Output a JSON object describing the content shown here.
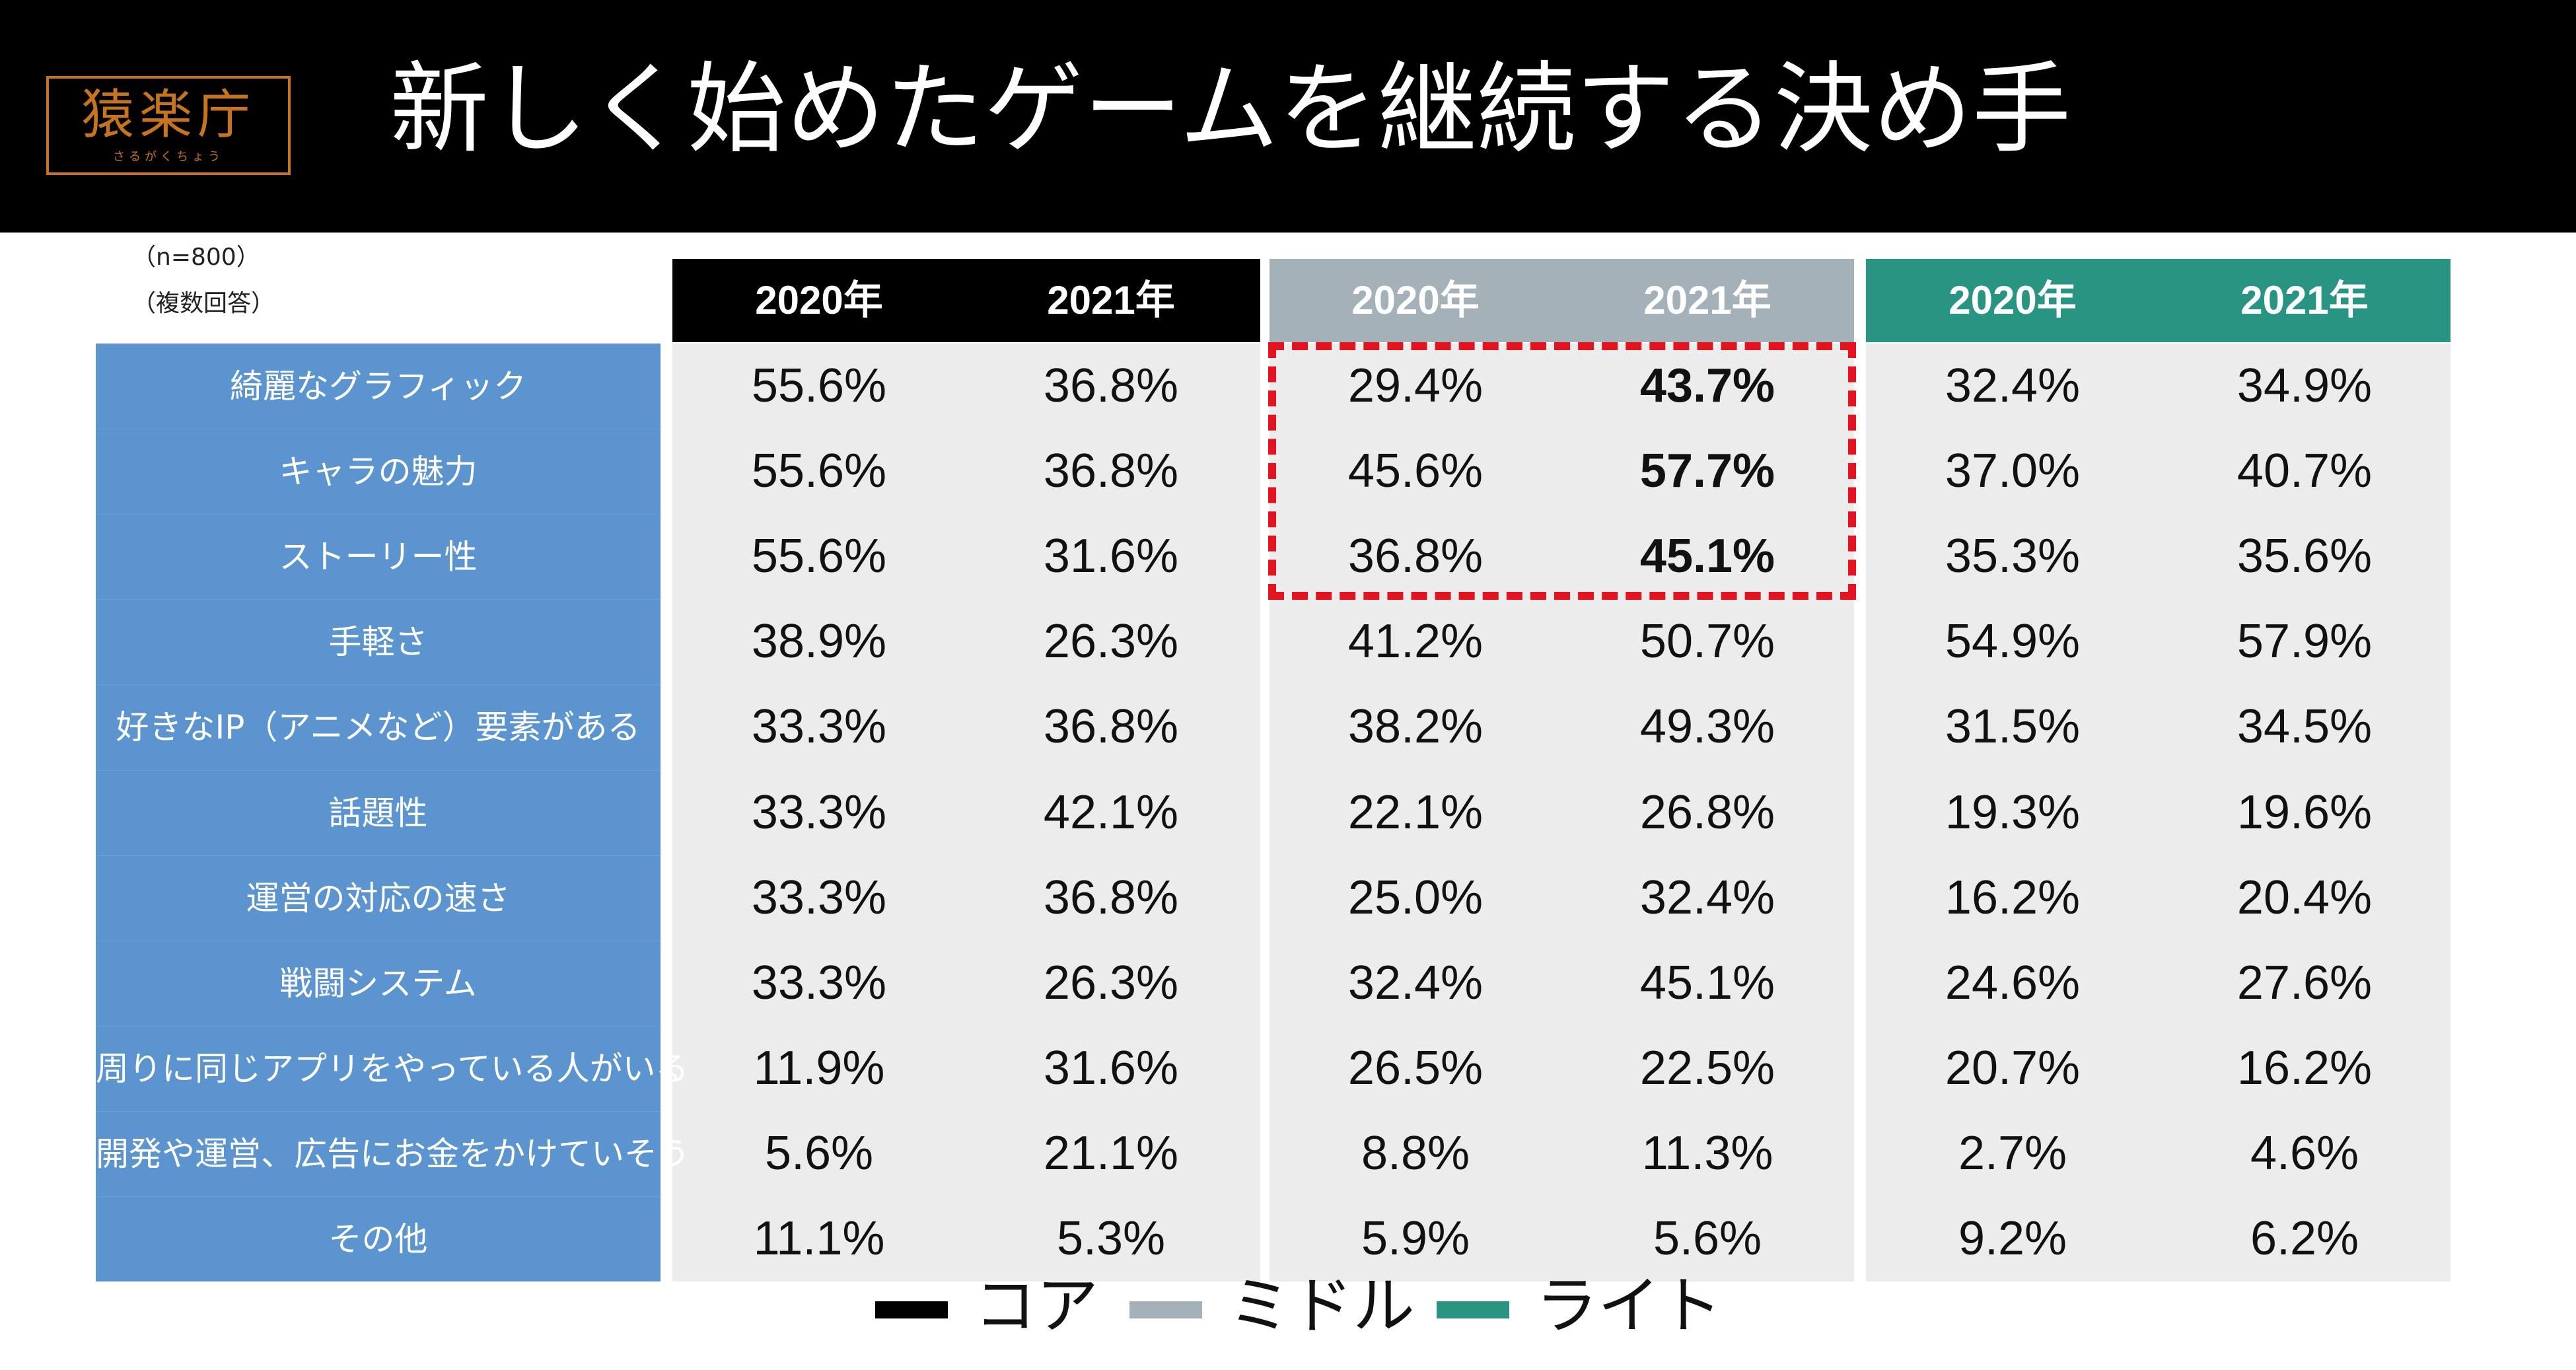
{
  "header": {
    "logo_text": "猿楽庁",
    "logo_subtext": "さるがくちょう",
    "title": "新しく始めたゲームを継続する決め手"
  },
  "notes": [
    "（n=800）",
    "（複数回答）"
  ],
  "groups": [
    {
      "name": "コア",
      "color": "#000000",
      "years": [
        "2020年",
        "2021年"
      ]
    },
    {
      "name": "ミドル",
      "color": "#a4b1b8",
      "years": [
        "2020年",
        "2021年"
      ]
    },
    {
      "name": "ライト",
      "color": "#2a9482",
      "years": [
        "2020年",
        "2021年"
      ]
    }
  ],
  "legend": [
    {
      "label": "コア",
      "color": "#000000"
    },
    {
      "label": "ミドル",
      "color": "#a4b1b8"
    },
    {
      "label": "ライト",
      "color": "#2a9482"
    }
  ],
  "chart_data": {
    "type": "table",
    "title": "新しく始めたゲームを継続する決め手",
    "column_groups": [
      "コア",
      "ミドル",
      "ライト"
    ],
    "columns": [
      "2020年",
      "2021年"
    ],
    "rows": [
      {
        "label": "綺麗なグラフィック",
        "values": [
          "55.6%",
          "36.8%",
          "29.4%",
          "43.7%",
          "32.4%",
          "34.9%"
        ],
        "bold": [
          3
        ]
      },
      {
        "label": "キャラの魅力",
        "values": [
          "55.6%",
          "36.8%",
          "45.6%",
          "57.7%",
          "37.0%",
          "40.7%"
        ],
        "bold": [
          3
        ]
      },
      {
        "label": "ストーリー性",
        "values": [
          "55.6%",
          "31.6%",
          "36.8%",
          "45.1%",
          "35.3%",
          "35.6%"
        ],
        "bold": [
          3
        ]
      },
      {
        "label": "手軽さ",
        "values": [
          "38.9%",
          "26.3%",
          "41.2%",
          "50.7%",
          "54.9%",
          "57.9%"
        ],
        "bold": []
      },
      {
        "label": "好きなIP（アニメなど）要素がある",
        "values": [
          "33.3%",
          "36.8%",
          "38.2%",
          "49.3%",
          "31.5%",
          "34.5%"
        ],
        "bold": []
      },
      {
        "label": "話題性",
        "values": [
          "33.3%",
          "42.1%",
          "22.1%",
          "26.8%",
          "19.3%",
          "19.6%"
        ],
        "bold": []
      },
      {
        "label": "運営の対応の速さ",
        "values": [
          "33.3%",
          "36.8%",
          "25.0%",
          "32.4%",
          "16.2%",
          "20.4%"
        ],
        "bold": []
      },
      {
        "label": "戦闘システム",
        "values": [
          "33.3%",
          "26.3%",
          "32.4%",
          "45.1%",
          "24.6%",
          "27.6%"
        ],
        "bold": []
      },
      {
        "label": "周りに同じアプリをやっている人がいる",
        "values": [
          "11.9%",
          "31.6%",
          "26.5%",
          "22.5%",
          "20.7%",
          "16.2%"
        ],
        "bold": []
      },
      {
        "label": "開発や運営、広告にお金をかけていそう",
        "values": [
          "5.6%",
          "21.1%",
          "8.8%",
          "11.3%",
          "2.7%",
          "4.6%"
        ],
        "bold": []
      },
      {
        "label": "その他",
        "values": [
          "11.1%",
          "5.3%",
          "5.9%",
          "5.6%",
          "9.2%",
          "6.2%"
        ],
        "bold": []
      }
    ],
    "highlight": {
      "group": "ミドル",
      "rows": [
        "綺麗なグラフィック",
        "キャラの魅力",
        "ストーリー性"
      ]
    }
  }
}
